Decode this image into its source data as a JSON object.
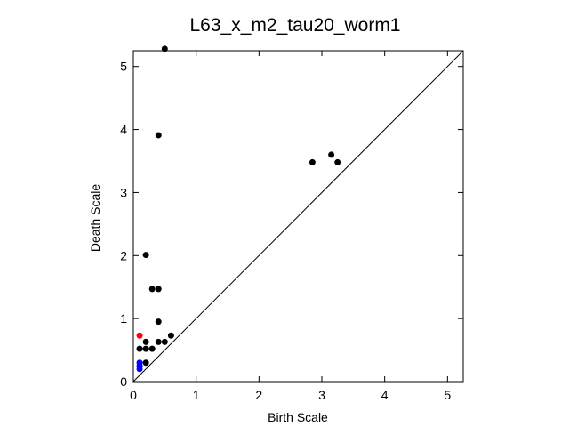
{
  "chart_data": {
    "type": "scatter",
    "title": "L63_x_m2_tau20_worm1",
    "xlabel": "Birth Scale",
    "ylabel": "Death Scale",
    "xlim": [
      0,
      5.25
    ],
    "ylim": [
      0,
      5.25
    ],
    "xticks": [
      "0",
      "1",
      "2",
      "3",
      "4",
      "5"
    ],
    "yticks": [
      "0",
      "1",
      "2",
      "3",
      "4",
      "5"
    ],
    "diagonal": true,
    "grid": false,
    "legend": "none",
    "series": [
      {
        "color": "#000000",
        "points": [
          [
            0.5,
            5.28
          ],
          [
            0.4,
            3.91
          ],
          [
            2.85,
            3.48
          ],
          [
            3.15,
            3.6
          ],
          [
            3.25,
            3.48
          ],
          [
            0.2,
            2.01
          ],
          [
            0.3,
            1.47
          ],
          [
            0.4,
            1.47
          ],
          [
            0.4,
            0.95
          ],
          [
            0.6,
            0.73
          ],
          [
            0.2,
            0.63
          ],
          [
            0.4,
            0.63
          ],
          [
            0.5,
            0.63
          ],
          [
            0.1,
            0.52
          ],
          [
            0.2,
            0.52
          ],
          [
            0.3,
            0.52
          ],
          [
            0.2,
            0.3
          ]
        ]
      },
      {
        "color": "#ff0000",
        "points": [
          [
            0.1,
            0.73
          ]
        ]
      },
      {
        "color": "#0000ff",
        "points": [
          [
            0.1,
            0.3
          ],
          [
            0.1,
            0.25
          ],
          [
            0.1,
            0.2
          ]
        ]
      }
    ]
  }
}
